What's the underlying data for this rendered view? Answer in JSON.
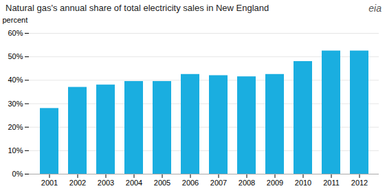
{
  "chart_data": {
    "type": "bar",
    "title": "Natural gas's annual share of total electricity sales in New England",
    "y_label": "percent",
    "annotations": [
      "eia"
    ],
    "categories": [
      "2001",
      "2002",
      "2003",
      "2004",
      "2005",
      "2006",
      "2007",
      "2008",
      "2009",
      "2010",
      "2011",
      "2012"
    ],
    "values": [
      28,
      37,
      38,
      39.5,
      39.5,
      42.5,
      42,
      41.5,
      42.5,
      48,
      52.5,
      52.5
    ],
    "color": "#1aaee0",
    "ylim": [
      0,
      60
    ],
    "yticks": [
      {
        "value": 0,
        "label": "0%"
      },
      {
        "value": 10,
        "label": "10%"
      },
      {
        "value": 20,
        "label": "20%"
      },
      {
        "value": 30,
        "label": "30%"
      },
      {
        "value": 40,
        "label": "40%"
      },
      {
        "value": 50,
        "label": "50%"
      },
      {
        "value": 60,
        "label": "60%"
      }
    ],
    "grid": true
  }
}
